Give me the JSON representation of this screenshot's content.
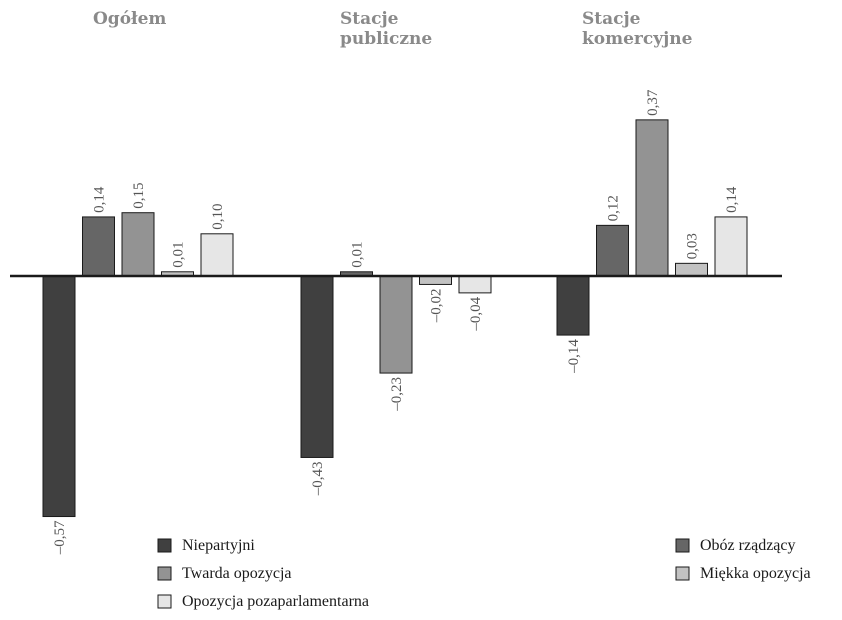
{
  "chart_data": {
    "type": "bar",
    "categories": [
      "Ogółem",
      "Stacje publiczne",
      "Stacje komercyjne"
    ],
    "category_title_lines": [
      [
        "Ogółem"
      ],
      [
        "Stacje",
        "publiczne"
      ],
      [
        "Stacje",
        "komercyjne"
      ]
    ],
    "series": [
      {
        "name": "Niepartyjni",
        "values": [
          -0.57,
          -0.43,
          -0.14
        ],
        "labels": [
          "–0,57",
          "–0,43",
          "–0,14"
        ],
        "color": "#404040"
      },
      {
        "name": "Obóz rządzący",
        "values": [
          0.14,
          0.01,
          0.12
        ],
        "labels": [
          "0,14",
          "0,01",
          "0,12"
        ],
        "color": "#666666"
      },
      {
        "name": "Twarda opozycja",
        "values": [
          0.15,
          -0.23,
          0.37
        ],
        "labels": [
          "0,15",
          "–0,23",
          "0,37"
        ],
        "color": "#939393"
      },
      {
        "name": "Miękka opozycja",
        "values": [
          0.01,
          -0.02,
          0.03
        ],
        "labels": [
          "0,01",
          "–0,02",
          "0,03"
        ],
        "color": "#c2c2c2"
      },
      {
        "name": "Opozycja pozaparlamentarna",
        "values": [
          0.1,
          -0.04,
          0.14
        ],
        "labels": [
          "0,10",
          "–0,04",
          "0,14"
        ],
        "color": "#e6e6e6"
      }
    ],
    "ylim": [
      -0.57,
      0.37
    ],
    "grid": false,
    "title": "",
    "xlabel": "",
    "ylabel": "",
    "legend": {
      "placement": "bottom",
      "columns": [
        [
          "Niepartyjni",
          "Twarda opozycja",
          "Opozycja pozaparlamentarna"
        ],
        [
          "Obóz rządzący",
          "Miękka opozycja"
        ]
      ]
    }
  }
}
